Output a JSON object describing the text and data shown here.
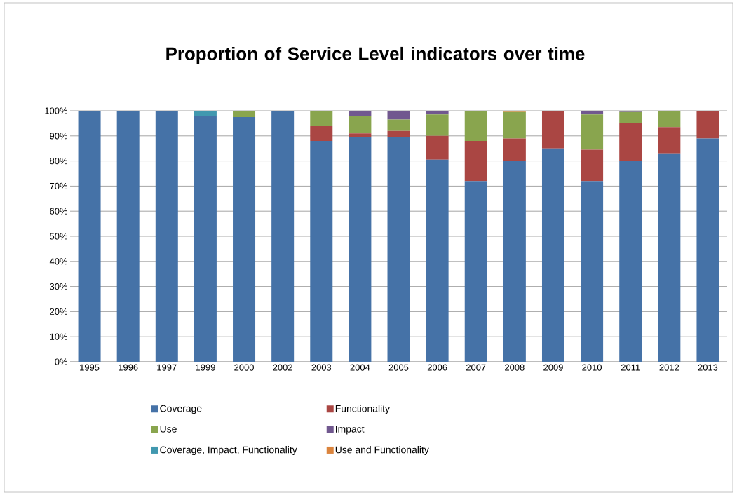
{
  "chart_data": {
    "type": "bar",
    "stacked": true,
    "title": "Proportion of Service Level indicators over time",
    "categories": [
      "1995",
      "1996",
      "1997",
      "1999",
      "2000",
      "2002",
      "2003",
      "2004",
      "2005",
      "2006",
      "2007",
      "2008",
      "2009",
      "2010",
      "2011",
      "2012",
      "2013"
    ],
    "series": [
      {
        "name": "Coverage",
        "color": "#4572a7",
        "values": [
          100,
          100,
          100,
          98,
          97.5,
          100,
          88,
          89.5,
          89.5,
          80.5,
          72,
          80,
          85,
          72,
          80,
          83,
          89
        ]
      },
      {
        "name": "Functionality",
        "color": "#aa4643",
        "values": [
          0,
          0,
          0,
          0,
          0,
          0,
          6,
          1.5,
          2.5,
          9.5,
          16,
          9,
          15,
          12.5,
          15,
          10.5,
          11
        ]
      },
      {
        "name": "Use",
        "color": "#89a54e",
        "values": [
          0,
          0,
          0,
          0,
          2.5,
          0,
          6,
          7,
          4.5,
          8.5,
          12,
          10.5,
          0,
          14,
          4.5,
          6.5,
          0
        ]
      },
      {
        "name": "Impact",
        "color": "#71588f",
        "values": [
          0,
          0,
          0,
          0,
          0,
          0,
          0,
          2,
          3.5,
          1.5,
          0,
          0,
          0,
          1.5,
          0.5,
          0,
          0
        ]
      },
      {
        "name": "Coverage, Impact, Functionality",
        "color": "#4198af",
        "values": [
          0,
          0,
          0,
          2,
          0,
          0,
          0,
          0,
          0,
          0,
          0,
          0,
          0,
          0,
          0,
          0,
          0
        ]
      },
      {
        "name": "Use and Functionality",
        "color": "#db843d",
        "values": [
          0,
          0,
          0,
          0,
          0,
          0,
          0,
          0,
          0,
          0,
          0,
          0.5,
          0,
          0,
          0,
          0,
          0
        ]
      }
    ],
    "ylim": [
      0,
      100
    ],
    "yticks": [
      {
        "value": 0,
        "label": "0%"
      },
      {
        "value": 10,
        "label": "10%"
      },
      {
        "value": 20,
        "label": "20%"
      },
      {
        "value": 30,
        "label": "30%"
      },
      {
        "value": 40,
        "label": "40%"
      },
      {
        "value": 50,
        "label": "50%"
      },
      {
        "value": 60,
        "label": "60%"
      },
      {
        "value": 70,
        "label": "70%"
      },
      {
        "value": 80,
        "label": "80%"
      },
      {
        "value": 90,
        "label": "90%"
      },
      {
        "value": 100,
        "label": "100%"
      }
    ],
    "grid": "y",
    "legend": "bottom"
  }
}
